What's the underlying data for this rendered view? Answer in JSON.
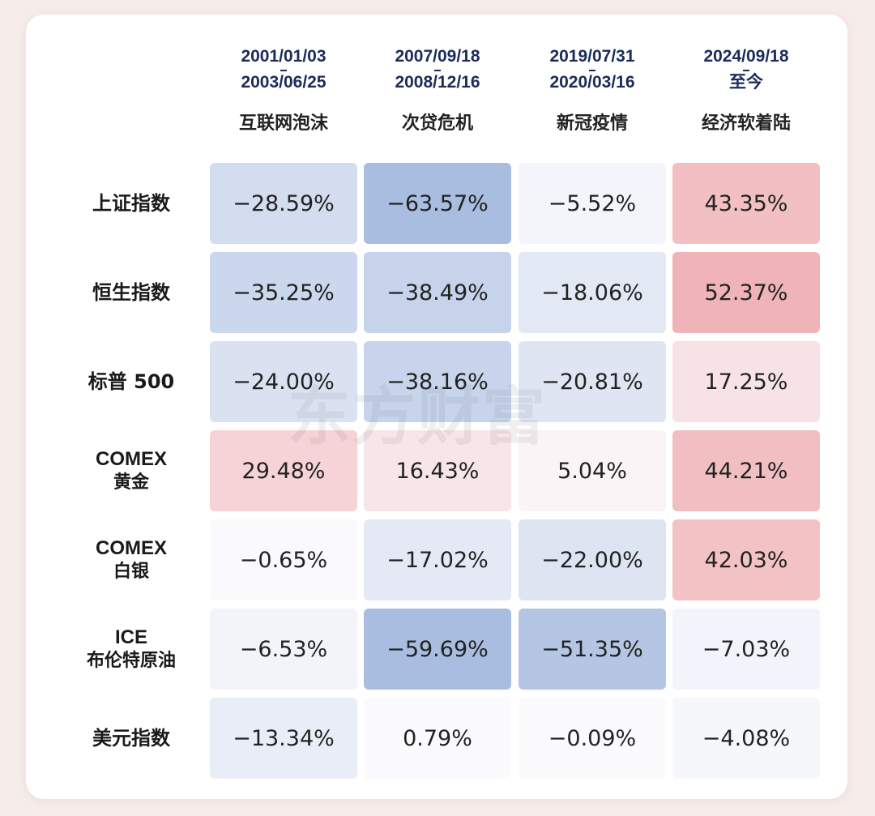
{
  "chart_data": {
    "type": "table",
    "periods": [
      {
        "start": "2001/01/03",
        "end": "2003/06/25",
        "event": "互联网泡沫"
      },
      {
        "start": "2007/09/18",
        "end": "2008/12/16",
        "event": "次贷危机"
      },
      {
        "start": "2019/07/31",
        "end": "2020/03/16",
        "event": "新冠疫情"
      },
      {
        "start": "2024/09/18",
        "end": "至今",
        "event": "经济软着陆"
      }
    ],
    "rows": [
      {
        "line1": "上证指数",
        "line2": "",
        "values": [
          -28.59,
          -63.57,
          -5.52,
          43.35
        ],
        "labels": [
          "−28.59%",
          "−63.57%",
          "−5.52%",
          "43.35%"
        ]
      },
      {
        "line1": "恒生指数",
        "line2": "",
        "values": [
          -35.25,
          -38.49,
          -18.06,
          52.37
        ],
        "labels": [
          "−35.25%",
          "−38.49%",
          "−18.06%",
          "52.37%"
        ]
      },
      {
        "line1": "标普 500",
        "line2": "",
        "values": [
          -24.0,
          -38.16,
          -20.81,
          17.25
        ],
        "labels": [
          "−24.00%",
          "−38.16%",
          "−20.81%",
          "17.25%"
        ]
      },
      {
        "line1": "COMEX",
        "line2": "黄金",
        "values": [
          29.48,
          16.43,
          5.04,
          44.21
        ],
        "labels": [
          "29.48%",
          "16.43%",
          "5.04%",
          "44.21%"
        ]
      },
      {
        "line1": "COMEX",
        "line2": "白银",
        "values": [
          -0.65,
          -17.02,
          -22.0,
          42.03
        ],
        "labels": [
          "−0.65%",
          "−17.02%",
          "−22.00%",
          "42.03%"
        ]
      },
      {
        "line1": "ICE",
        "line2": "布伦特原油",
        "values": [
          -6.53,
          -59.69,
          -51.35,
          -7.03
        ],
        "labels": [
          "−6.53%",
          "−59.69%",
          "−51.35%",
          "−7.03%"
        ]
      },
      {
        "line1": "美元指数",
        "line2": "",
        "values": [
          -13.34,
          0.79,
          -0.09,
          -4.08
        ],
        "labels": [
          "−13.34%",
          "0.79%",
          "−0.09%",
          "−4.08%"
        ]
      }
    ],
    "colors": {
      "negative": "#a9bde0",
      "positive": "#eea9ad",
      "neutral": "#fbfbfd"
    }
  },
  "watermark": "东方财富"
}
